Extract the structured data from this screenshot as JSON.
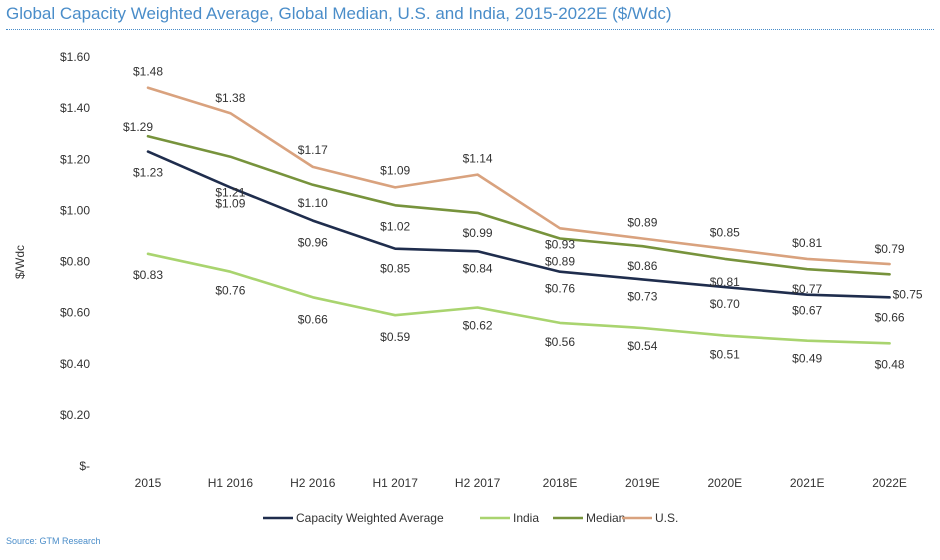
{
  "chart_data": {
    "type": "line",
    "title": "Global Capacity Weighted Average, Global Median, U.S. and India, 2015-2022E ($/Wdc)",
    "ylabel": "$/Wdc",
    "xlabel": "",
    "categories": [
      "2015",
      "H1 2016",
      "H2 2016",
      "H1 2017",
      "H2 2017",
      "2018E",
      "2019E",
      "2020E",
      "2021E",
      "2022E"
    ],
    "y_ticks": [
      "$-",
      "$0.20",
      "$0.40",
      "$0.60",
      "$0.80",
      "$1.00",
      "$1.20",
      "$1.40",
      "$1.60"
    ],
    "ylim": [
      0,
      1.6
    ],
    "grid": true,
    "legend_position": "bottom",
    "series": [
      {
        "name": "Capacity Weighted Average",
        "color": "#1f2d4d",
        "values": [
          1.23,
          1.09,
          0.96,
          0.85,
          0.84,
          0.76,
          0.73,
          0.7,
          0.67,
          0.66
        ],
        "labels": [
          "$1.23",
          "$1.09",
          "$0.96",
          "$0.85",
          "$0.84",
          "$0.76",
          "$0.73",
          "$0.70",
          "$0.67",
          "$0.66"
        ]
      },
      {
        "name": "India",
        "color": "#a9d46f",
        "values": [
          0.83,
          0.76,
          0.66,
          0.59,
          0.62,
          0.56,
          0.54,
          0.51,
          0.49,
          0.48
        ],
        "labels": [
          "$0.83",
          "$0.76",
          "$0.66",
          "$0.59",
          "$0.62",
          "$0.56",
          "$0.54",
          "$0.51",
          "$0.49",
          "$0.48"
        ]
      },
      {
        "name": "Median",
        "color": "#77933c",
        "values": [
          1.29,
          1.21,
          1.1,
          1.02,
          0.99,
          0.89,
          0.86,
          0.81,
          0.77,
          0.75
        ],
        "labels": [
          "$1.29",
          "$1.21",
          "$1.10",
          "$1.02",
          "$0.99",
          "$0.89",
          "$0.86",
          "$0.81",
          "$0.77",
          "$0.75"
        ]
      },
      {
        "name": "U.S.",
        "color": "#d9a27e",
        "values": [
          1.48,
          1.38,
          1.17,
          1.09,
          1.14,
          0.93,
          0.89,
          0.85,
          0.81,
          0.79
        ],
        "labels": [
          "$1.48",
          "$1.38",
          "$1.17",
          "$1.09",
          "$1.14",
          "$0.93",
          "$0.89",
          "$0.85",
          "$0.81",
          "$0.79"
        ]
      }
    ]
  },
  "source": "Source: GTM Research"
}
